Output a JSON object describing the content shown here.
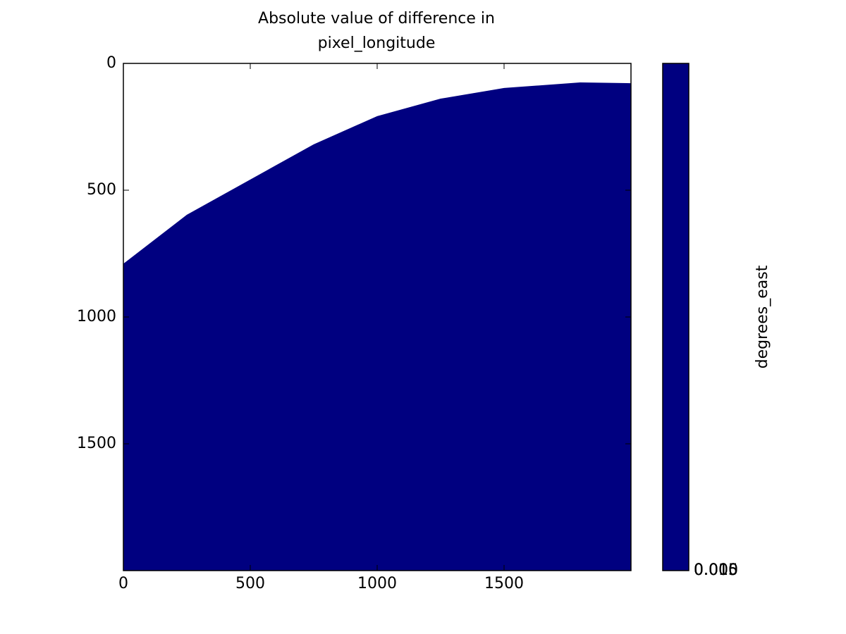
{
  "chart_data": {
    "type": "image",
    "title": [
      "Absolute value of difference in",
      "pixel_longitude"
    ],
    "boundary": {
      "x": [
        0,
        250,
        500,
        750,
        1000,
        1250,
        1500,
        1800,
        2000
      ],
      "y": [
        790,
        597,
        458,
        319,
        208,
        139,
        97,
        75,
        78
      ]
    },
    "color": "#000080",
    "xlim": [
      0,
      2000
    ],
    "ylim": [
      2000,
      0
    ],
    "xticks": [
      0,
      500,
      1000,
      1500
    ],
    "yticks": [
      0,
      500,
      1000,
      1500
    ],
    "colorbar": {
      "label": "degrees_east",
      "color": "#000080",
      "ticks": [
        "0.000",
        "0.005",
        "0.010",
        "0.015"
      ]
    }
  }
}
